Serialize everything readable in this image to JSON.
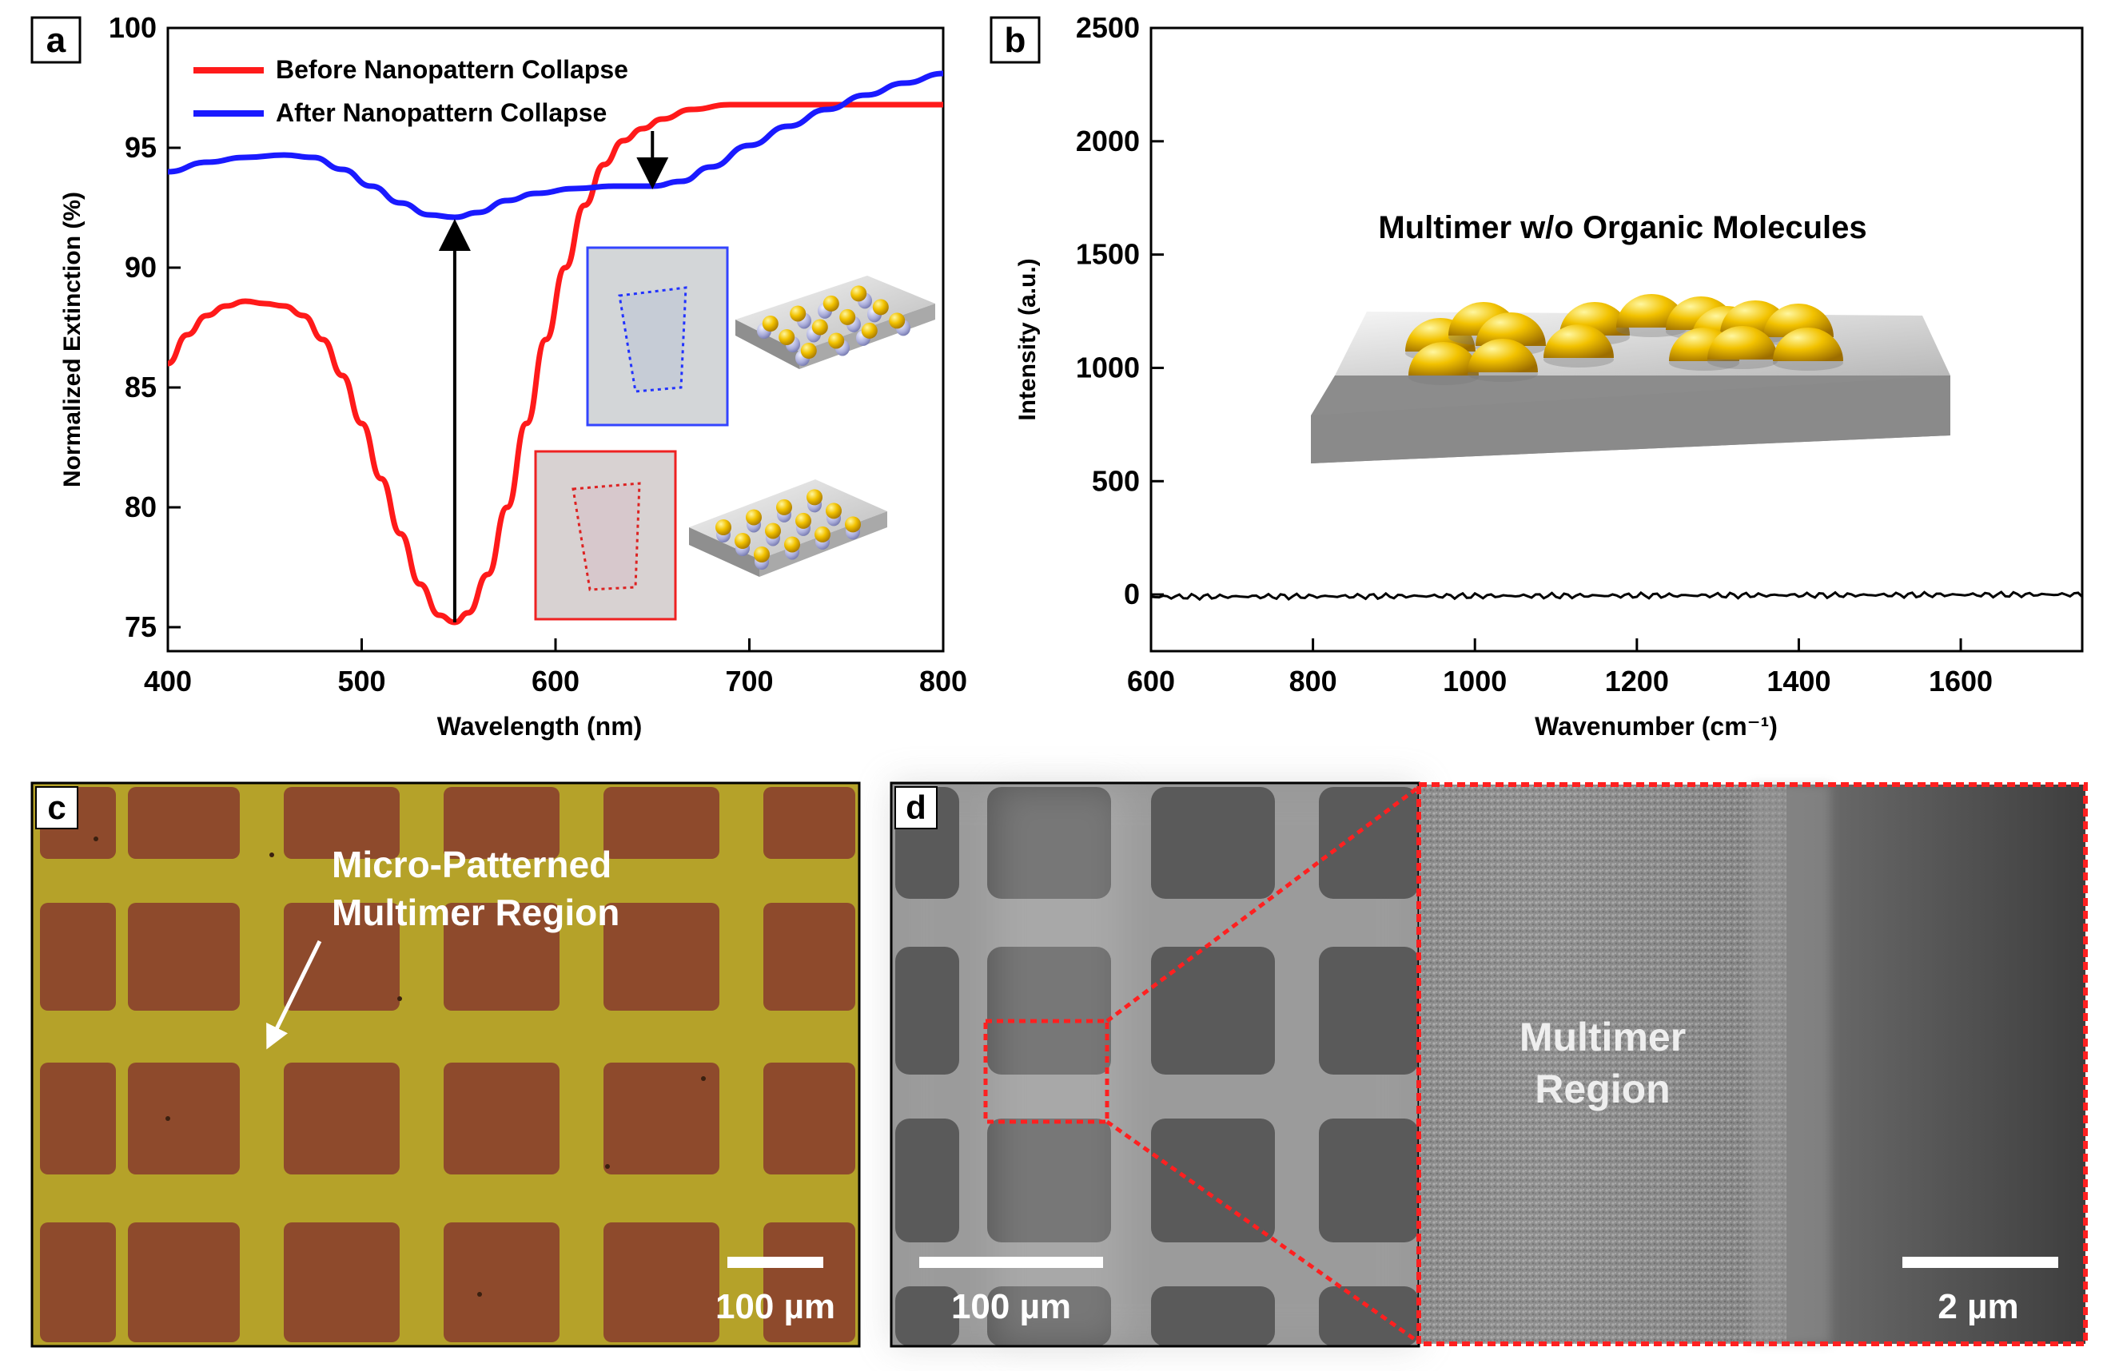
{
  "panels": {
    "a": {
      "letter": "a",
      "chart_data": {
        "type": "line",
        "xlabel": "Wavelength (nm)",
        "ylabel": "Normalized Extinction (%)",
        "xlim": [
          400,
          800
        ],
        "ylim": [
          74,
          100
        ],
        "xticks": [
          400,
          500,
          600,
          700,
          800
        ],
        "yticks": [
          75,
          80,
          85,
          90,
          95,
          100
        ],
        "series": [
          {
            "name": "Before Nanopattern Collapse",
            "color": "#ff1a1a",
            "x": [
              400,
              410,
              420,
              430,
              440,
              450,
              460,
              470,
              480,
              490,
              500,
              510,
              520,
              530,
              540,
              548,
              555,
              565,
              575,
              585,
              595,
              605,
              615,
              625,
              635,
              645,
              655,
              670,
              690,
              710,
              730,
              750,
              770,
              790,
              800
            ],
            "y": [
              86,
              87.2,
              88,
              88.4,
              88.6,
              88.5,
              88.4,
              88,
              87,
              85.5,
              83.5,
              81.2,
              78.9,
              76.8,
              75.5,
              75.2,
              75.6,
              77.2,
              80,
              83.5,
              87,
              90,
              92.6,
              94.3,
              95.3,
              95.8,
              96.2,
              96.6,
              96.8,
              96.8,
              96.8,
              96.8,
              96.8,
              96.8,
              96.8
            ]
          },
          {
            "name": "After Nanopattern Collapse",
            "color": "#1a1aff",
            "x": [
              400,
              420,
              440,
              460,
              475,
              490,
              505,
              520,
              535,
              548,
              560,
              575,
              590,
              610,
              630,
              650,
              665,
              680,
              700,
              720,
              740,
              760,
              780,
              800
            ],
            "y": [
              94,
              94.4,
              94.6,
              94.7,
              94.6,
              94.1,
              93.4,
              92.7,
              92.2,
              92.1,
              92.3,
              92.8,
              93.1,
              93.3,
              93.4,
              93.4,
              93.6,
              94.2,
              95.1,
              95.9,
              96.6,
              97.2,
              97.7,
              98.1
            ]
          }
        ],
        "annotations": [
          {
            "type": "arrow-up",
            "x": 548,
            "from": 75.2,
            "to": 92.1
          },
          {
            "type": "arrow-down",
            "x": 650,
            "from": 95.7,
            "to": 93.2
          }
        ]
      }
    },
    "b": {
      "letter": "b",
      "chart_data": {
        "type": "line",
        "xlabel": "Wavenumber (cm⁻¹)",
        "ylabel": "Intensity (a.u.)",
        "xlim": [
          600,
          1750
        ],
        "ylim": [
          -250,
          2500
        ],
        "xticks": [
          600,
          800,
          1000,
          1200,
          1400,
          1600
        ],
        "yticks": [
          0,
          500,
          1000,
          1500,
          2000,
          2500
        ],
        "series": [
          {
            "name": "Multimer w/o Organic Molecules",
            "color": "#000000",
            "x": [
              600,
              1750
            ],
            "y": [
              -10,
              0
            ]
          }
        ],
        "annotation_text": "Multimer w/o Organic Molecules"
      }
    },
    "c": {
      "letter": "c",
      "label_line1": "Micro-Patterned",
      "label_line2": "Multimer Region",
      "scale": "100 µm"
    },
    "d": {
      "letter": "d",
      "scale_left": "100 µm",
      "inset_label_line1": "Multimer",
      "inset_label_line2": "Region",
      "scale_right": "2 µm"
    }
  }
}
